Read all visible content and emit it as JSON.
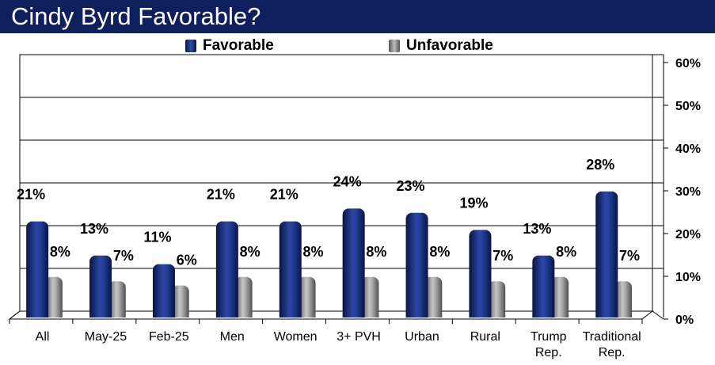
{
  "title": "Cindy Byrd Favorable?",
  "legend": {
    "favorable": "Favorable",
    "unfavorable": "Unfavorable"
  },
  "colors": {
    "title_bg": "#0f1f5c",
    "favorable": "#1b2f7a",
    "unfavorable": "#8c8c8c"
  },
  "chart_data": {
    "type": "bar",
    "title": "Cindy Byrd Favorable?",
    "categories": [
      [
        "All"
      ],
      [
        "May-25"
      ],
      [
        "Feb-25"
      ],
      [
        "Men"
      ],
      [
        "Women"
      ],
      [
        "3+ PVH"
      ],
      [
        "Urban"
      ],
      [
        "Rural"
      ],
      [
        "Trump",
        "Rep."
      ],
      [
        "Traditional",
        "Rep."
      ]
    ],
    "series": [
      {
        "name": "Favorable",
        "values": [
          21,
          13,
          11,
          21,
          21,
          24,
          23,
          19,
          13,
          28
        ]
      },
      {
        "name": "Unfavorable",
        "values": [
          8,
          7,
          6,
          8,
          8,
          8,
          8,
          7,
          8,
          7
        ]
      }
    ],
    "value_labels": {
      "Favorable": [
        "21%",
        "13%",
        "11%",
        "21%",
        "21%",
        "24%",
        "23%",
        "19%",
        "13%",
        "28%"
      ],
      "Unfavorable": [
        "8%",
        "7%",
        "6%",
        "8%",
        "8%",
        "8%",
        "8%",
        "7%",
        "8%",
        "7%"
      ]
    },
    "ylim": [
      0,
      60
    ],
    "yticks": [
      "0%",
      "10%",
      "20%",
      "30%",
      "40%",
      "50%",
      "60%"
    ],
    "ytick_values": [
      0,
      10,
      20,
      30,
      40,
      50,
      60
    ],
    "grid": true,
    "legend_position": "top-center"
  }
}
